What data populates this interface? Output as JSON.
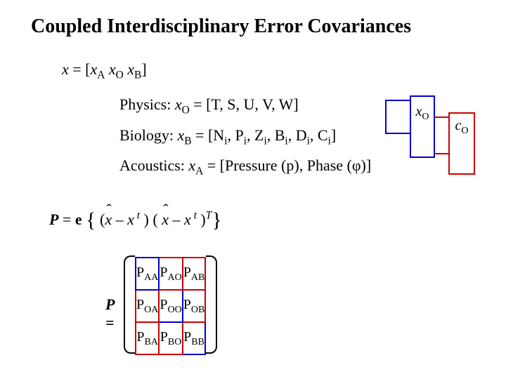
{
  "title": "Coupled Interdisciplinary Error Covariances",
  "state_vector": {
    "lhs": "x",
    "open": " = [",
    "a": "x",
    "a_sub": "A",
    "sp1": "  ",
    "o": "x",
    "o_sub": "O",
    "sp2": "  ",
    "b": "x",
    "b_sub": "B",
    "close": "]"
  },
  "defs": {
    "physics": {
      "label": "Physics:  ",
      "var": "x",
      "sub": "O",
      "rest": " = [T, S, U, V, W]"
    },
    "biology": {
      "label": "Biology:  ",
      "var": "x",
      "sub": "B",
      "rest_pre": " = [N",
      "i1": "i",
      "p": ", P",
      "i2": "i",
      "z": ", Z",
      "i3": "i",
      "b": ", B",
      "i4": "i",
      "d": ", D",
      "i5": "i",
      "c": ", C",
      "i6": "i",
      "close": "]"
    },
    "acoustics": {
      "label": "Acoustics:  ",
      "var": "x",
      "sub": "A",
      "rest": " = [Pressure (p), Phase (φ)]"
    }
  },
  "xo_box": {
    "var": "x",
    "sub": "O"
  },
  "co_box": {
    "var": "c",
    "sub": "O"
  },
  "colors": {
    "blue": "#0000cc",
    "red": "#cc0000",
    "black": "#000000"
  },
  "covar": {
    "P": "P",
    "eq": " = ",
    "eps": "e",
    "lb": "{",
    "open": " (",
    "xhat1": "x",
    "minus1": " – ",
    "xt1": "x",
    "t1_sup": " t",
    "mid": " ) ( ",
    "xhat2": "x",
    "minus2": " – ",
    "xt2": "x",
    "t2_sup": " t",
    "close_inner": " )",
    "T_sup": "T",
    "rb": "}"
  },
  "matrix": {
    "P_label": "P =",
    "cells": [
      [
        {
          "base": "P",
          "s1": "A",
          "s2": "A"
        },
        {
          "base": "P",
          "s1": "A",
          "s2": "O"
        },
        {
          "base": "P",
          "s1": "A",
          "s2": "B"
        }
      ],
      [
        {
          "base": "P",
          "s1": "O",
          "s2": "A"
        },
        {
          "base": "P",
          "s1": "O",
          "s2": "O"
        },
        {
          "base": "P",
          "s1": "O",
          "s2": "B"
        }
      ],
      [
        {
          "base": "P",
          "s1": "B",
          "s2": "A"
        },
        {
          "base": "P",
          "s1": "B",
          "s2": "O"
        },
        {
          "base": "P",
          "s1": "B",
          "s2": "B"
        }
      ]
    ],
    "border_colors": [
      [
        "#0000cc",
        "#cc0000",
        "#cc0000"
      ],
      [
        "#cc0000",
        "#0000cc",
        "#cc0000"
      ],
      [
        "#cc0000",
        "#cc0000",
        "#0000cc"
      ]
    ]
  }
}
